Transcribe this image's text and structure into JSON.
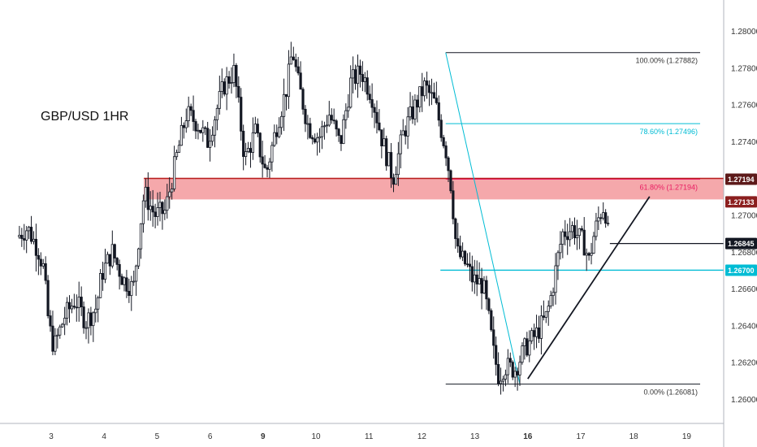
{
  "chart_data": {
    "type": "candlestick",
    "title": "GBP/USD 1HR",
    "xlabel": "",
    "ylabel": "",
    "ylim": [
      1.259,
      1.2825
    ],
    "y_ticks": [
      "1.28000",
      "1.27800",
      "1.27600",
      "1.27400",
      "1.27200",
      "1.27000",
      "1.26800",
      "1.26600",
      "1.26400",
      "1.26200",
      "1.26000"
    ],
    "x_ticks": [
      {
        "label": "3",
        "day": 3,
        "bold": false
      },
      {
        "label": "4",
        "day": 4,
        "bold": false
      },
      {
        "label": "5",
        "day": 5,
        "bold": false
      },
      {
        "label": "6",
        "day": 6,
        "bold": false
      },
      {
        "label": "9",
        "day": 7,
        "bold": true
      },
      {
        "label": "10",
        "day": 8,
        "bold": false
      },
      {
        "label": "11",
        "day": 9,
        "bold": false
      },
      {
        "label": "12",
        "day": 10,
        "bold": false
      },
      {
        "label": "13",
        "day": 11,
        "bold": false
      },
      {
        "label": "16",
        "day": 12,
        "bold": true
      },
      {
        "label": "17",
        "day": 13,
        "bold": false
      },
      {
        "label": "18",
        "day": 14,
        "bold": false
      },
      {
        "label": "19",
        "day": 15,
        "bold": false
      }
    ],
    "price_path": [
      [
        2.4,
        1.2688
      ],
      [
        2.6,
        1.2693
      ],
      [
        2.8,
        1.2681
      ],
      [
        2.9,
        1.2671
      ],
      [
        3.0,
        1.264
      ],
      [
        3.1,
        1.2628
      ],
      [
        3.3,
        1.2645
      ],
      [
        3.5,
        1.2654
      ],
      [
        3.7,
        1.2642
      ],
      [
        3.9,
        1.265
      ],
      [
        4.0,
        1.2668
      ],
      [
        4.2,
        1.268
      ],
      [
        4.4,
        1.2665
      ],
      [
        4.6,
        1.266
      ],
      [
        4.7,
        1.2688
      ],
      [
        4.8,
        1.2712
      ],
      [
        5.0,
        1.27
      ],
      [
        5.2,
        1.2702
      ],
      [
        5.4,
        1.273
      ],
      [
        5.6,
        1.2755
      ],
      [
        5.8,
        1.275
      ],
      [
        6.0,
        1.274
      ],
      [
        6.3,
        1.277
      ],
      [
        6.5,
        1.2778
      ],
      [
        6.6,
        1.2755
      ],
      [
        6.7,
        1.273
      ],
      [
        6.9,
        1.2745
      ],
      [
        7.1,
        1.2722
      ],
      [
        7.3,
        1.2748
      ],
      [
        7.5,
        1.277
      ],
      [
        7.6,
        1.279
      ],
      [
        7.7,
        1.2773
      ],
      [
        7.9,
        1.2748
      ],
      [
        8.1,
        1.2742
      ],
      [
        8.3,
        1.2755
      ],
      [
        8.5,
        1.2738
      ],
      [
        8.7,
        1.2772
      ],
      [
        8.9,
        1.2778
      ],
      [
        9.1,
        1.2765
      ],
      [
        9.3,
        1.274
      ],
      [
        9.5,
        1.272
      ],
      [
        9.7,
        1.2745
      ],
      [
        9.9,
        1.2758
      ],
      [
        10.1,
        1.277
      ],
      [
        10.3,
        1.276
      ],
      [
        10.5,
        1.2735
      ],
      [
        10.6,
        1.2715
      ],
      [
        10.7,
        1.268
      ],
      [
        10.9,
        1.2672
      ],
      [
        11.0,
        1.2665
      ],
      [
        11.2,
        1.2662
      ],
      [
        11.3,
        1.2645
      ],
      [
        11.4,
        1.2625
      ],
      [
        11.5,
        1.2612
      ],
      [
        11.6,
        1.2618
      ],
      [
        11.8,
        1.2616
      ],
      [
        12.0,
        1.2628
      ],
      [
        12.2,
        1.2635
      ],
      [
        12.4,
        1.2645
      ],
      [
        12.5,
        1.2658
      ],
      [
        12.6,
        1.2675
      ],
      [
        12.7,
        1.269
      ],
      [
        12.9,
        1.2693
      ],
      [
        13.0,
        1.2688
      ],
      [
        13.1,
        1.2685
      ],
      [
        13.2,
        1.2675
      ],
      [
        13.3,
        1.269
      ],
      [
        13.4,
        1.27
      ],
      [
        13.5,
        1.2706
      ],
      [
        13.55,
        1.269
      ]
    ],
    "fib_levels": [
      {
        "label": "100.00% (1.27882)",
        "price": 1.27882,
        "color": "#131722"
      },
      {
        "label": "78.60% (1.27496)",
        "price": 1.27496,
        "color": "#00bcd4"
      },
      {
        "label": "61.80% (1.27194)",
        "price": 1.27194,
        "color": "#e91e63"
      },
      {
        "label": "0.00% (1.26081)",
        "price": 1.26081,
        "color": "#131722"
      }
    ],
    "zone": {
      "top": 1.27194,
      "bottom": 1.27133,
      "color": "#f28b8f"
    },
    "horizontal_lines": [
      {
        "price": 1.26845,
        "color": "#131722"
      },
      {
        "price": 1.267,
        "color": "#00bcd4"
      }
    ],
    "price_badges": [
      {
        "label": "1.27194",
        "price": 1.27194,
        "bg": "#5d1a1a",
        "fg": "#ffffff"
      },
      {
        "label": "1.27133",
        "price": 1.27133,
        "bg": "#8b1e1e",
        "fg": "#ffffff"
      },
      {
        "label": "1.26845",
        "price": 1.26845,
        "bg": "#131722",
        "fg": "#ffffff"
      },
      {
        "label": "1.26700",
        "price": 1.267,
        "bg": "#00bcd4",
        "fg": "#ffffff"
      }
    ],
    "trendline": {
      "from": [
        12.0,
        1.2611
      ],
      "to": [
        14.3,
        1.271
      ],
      "color": "#131722"
    },
    "fib_diagonal": {
      "from": [
        10.45,
        1.27882
      ],
      "to": [
        11.85,
        1.26081
      ],
      "color": "#00bcd4"
    },
    "colors": {
      "up": "#131722",
      "down": "#131722",
      "grid": "#e6e6e6",
      "axis": "#b2b5be"
    },
    "grid": false,
    "legend": "none"
  }
}
